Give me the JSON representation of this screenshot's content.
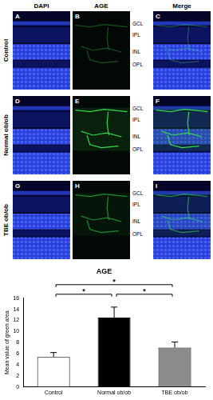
{
  "panels": {
    "columns": [
      "DAPI",
      "AGE",
      "Merge"
    ],
    "rows": [
      "Control",
      "Normal ob/ob",
      "TBE ob/ob"
    ],
    "letters": [
      [
        "A",
        "B",
        "C"
      ],
      [
        "D",
        "E",
        "F"
      ],
      [
        "G",
        "H",
        "I"
      ]
    ],
    "layers": [
      "GCL",
      "IPL",
      "INL",
      "OPL"
    ]
  },
  "chart_data": {
    "type": "bar",
    "title": "AGE",
    "y_label": "Mean value of green area",
    "categories": [
      "Control",
      "Normal ob/ob",
      "TBE ob/ob"
    ],
    "values": [
      5.4,
      12.5,
      7.1
    ],
    "errors": [
      0.8,
      1.9,
      1.0
    ],
    "colors": [
      "#ffffff",
      "#000000",
      "#8c8c8c"
    ],
    "ylim": [
      0,
      16
    ],
    "yticks": [
      0,
      2,
      4,
      6,
      8,
      10,
      12,
      14,
      16
    ],
    "grid": false,
    "significance": [
      {
        "pair": [
          "Control",
          "Normal ob/ob"
        ],
        "label": "*"
      },
      {
        "pair": [
          "Control",
          "TBE ob/ob"
        ],
        "label": "*"
      },
      {
        "pair": [
          "Normal ob/ob",
          "TBE ob/ob"
        ],
        "label": "*"
      }
    ]
  }
}
